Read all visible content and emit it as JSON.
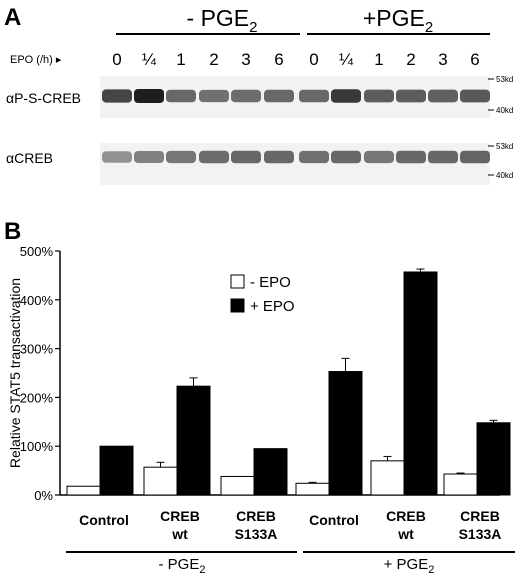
{
  "panel_a": {
    "label": "A",
    "group_minus": {
      "prefix": "- PGE",
      "sub": "2"
    },
    "group_plus": {
      "prefix": "+PGE",
      "sub": "2"
    },
    "epo_label": "EPO (/h) ▸",
    "timepoints": [
      "0",
      "¼",
      "1",
      "2",
      "3",
      "6",
      "0",
      "¼",
      "1",
      "2",
      "3",
      "6"
    ],
    "blots": [
      {
        "label": "αP-S-CREB",
        "markers": [
          "53kd",
          "40kd"
        ],
        "bands": [
          0.8,
          1.0,
          0.62,
          0.58,
          0.6,
          0.62,
          0.62,
          0.86,
          0.68,
          0.68,
          0.66,
          0.7
        ]
      },
      {
        "label": "αCREB",
        "markers": [
          "53kd",
          "40kd"
        ],
        "bands": [
          0.4,
          0.5,
          0.55,
          0.6,
          0.62,
          0.62,
          0.58,
          0.62,
          0.55,
          0.62,
          0.62,
          0.64
        ]
      }
    ]
  },
  "chart_data": {
    "type": "bar",
    "panel_label": "B",
    "ylabel": "Relative STAT5 transactivation",
    "ylim": [
      0,
      500
    ],
    "yticks": [
      0,
      100,
      200,
      300,
      400,
      500
    ],
    "ytick_labels": [
      "0%",
      "100%",
      "200%",
      "300%",
      "400%",
      "500%"
    ],
    "categories": [
      {
        "line1": "Control",
        "line2": ""
      },
      {
        "line1": "CREB",
        "line2": "wt"
      },
      {
        "line1": "CREB",
        "line2": "S133A"
      },
      {
        "line1": "Control",
        "line2": ""
      },
      {
        "line1": "CREB",
        "line2": "wt"
      },
      {
        "line1": "CREB",
        "line2": "S133A"
      }
    ],
    "series": [
      {
        "name": "- EPO",
        "color": "#ffffff",
        "values": [
          18,
          57,
          38,
          24,
          70,
          43
        ],
        "errors": [
          0,
          10,
          0,
          2,
          9,
          2
        ]
      },
      {
        "name": "+ EPO",
        "color": "#000000",
        "values": [
          100,
          223,
          95,
          253,
          457,
          148
        ],
        "errors": [
          0,
          17,
          0,
          27,
          6,
          5
        ]
      }
    ],
    "legend_position": "top-center",
    "groups": [
      {
        "prefix": "- PGE",
        "sub": "2"
      },
      {
        "prefix": "+ PGE",
        "sub": "2"
      }
    ]
  }
}
